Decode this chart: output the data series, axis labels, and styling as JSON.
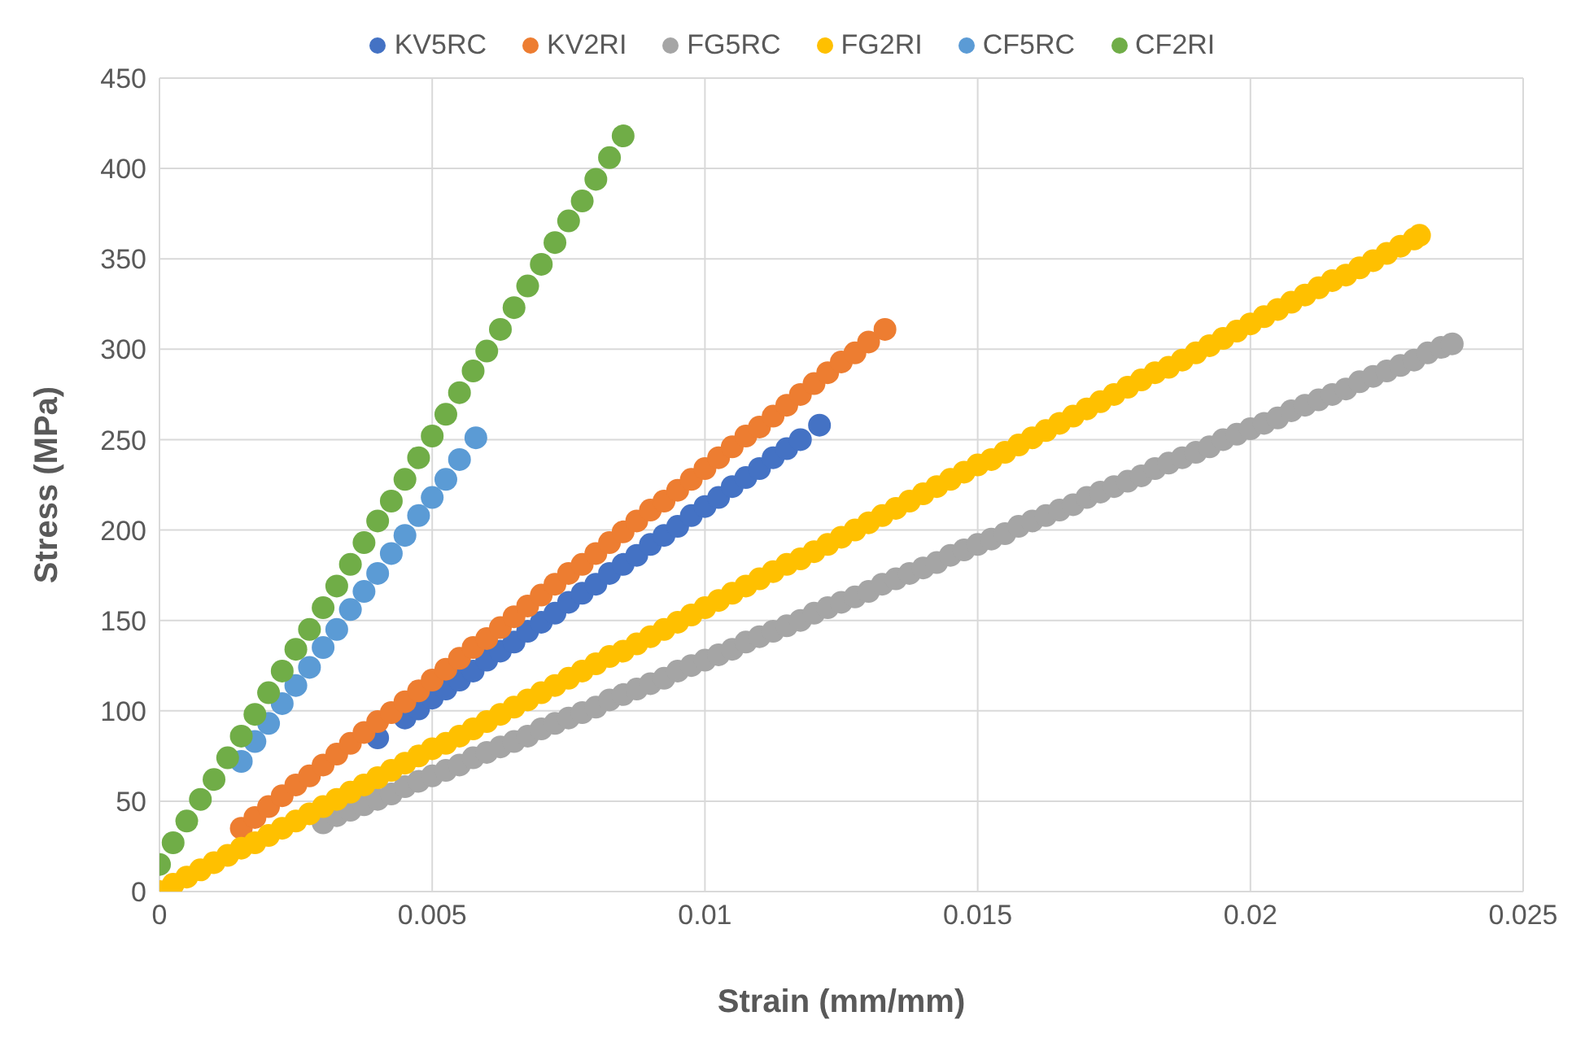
{
  "chart_data": {
    "type": "scatter",
    "xlabel": "Strain (mm/mm)",
    "ylabel": "Stress (MPa)",
    "xlim": [
      0,
      0.025
    ],
    "xticks": [
      0,
      0.005,
      0.01,
      0.015,
      0.02,
      0.025
    ],
    "ylim": [
      0,
      450
    ],
    "yticks": [
      0,
      50,
      100,
      150,
      200,
      250,
      300,
      350,
      400,
      450
    ],
    "grid": true,
    "legend": "top",
    "marker": "circle",
    "series": [
      {
        "name": "KV5RC",
        "color": "#4472c4",
        "x": [
          0.004,
          0.0045,
          0.00475,
          0.005,
          0.00525,
          0.0055,
          0.00575,
          0.006,
          0.00625,
          0.0065,
          0.00675,
          0.007,
          0.00725,
          0.0075,
          0.00775,
          0.008,
          0.00825,
          0.0085,
          0.00875,
          0.009,
          0.00925,
          0.0095,
          0.00975,
          0.01,
          0.01025,
          0.0105,
          0.01075,
          0.011,
          0.01125,
          0.0115,
          0.01175,
          0.0121
        ],
        "values": [
          85,
          96,
          101,
          107,
          112,
          117,
          122,
          128,
          133,
          138,
          144,
          149,
          154,
          160,
          165,
          170,
          176,
          181,
          186,
          192,
          197,
          202,
          208,
          213,
          218,
          224,
          229,
          234,
          240,
          245,
          250,
          258
        ]
      },
      {
        "name": "KV2RI",
        "color": "#ed7d31",
        "x": [
          0.0015,
          0.00175,
          0.002,
          0.00225,
          0.0025,
          0.00275,
          0.003,
          0.00325,
          0.0035,
          0.00375,
          0.004,
          0.00425,
          0.0045,
          0.00475,
          0.005,
          0.00525,
          0.0055,
          0.00575,
          0.006,
          0.00625,
          0.0065,
          0.00675,
          0.007,
          0.00725,
          0.0075,
          0.00775,
          0.008,
          0.00825,
          0.0085,
          0.00875,
          0.009,
          0.00925,
          0.0095,
          0.00975,
          0.01,
          0.01025,
          0.0105,
          0.01075,
          0.011,
          0.01125,
          0.0115,
          0.01175,
          0.012,
          0.01225,
          0.0125,
          0.01275,
          0.013,
          0.0133
        ],
        "values": [
          35,
          41,
          47,
          53,
          59,
          64,
          70,
          76,
          82,
          88,
          94,
          99,
          105,
          111,
          117,
          123,
          129,
          135,
          140,
          146,
          152,
          158,
          164,
          170,
          176,
          181,
          187,
          193,
          199,
          205,
          211,
          216,
          222,
          228,
          234,
          240,
          246,
          252,
          257,
          263,
          269,
          275,
          281,
          287,
          293,
          298,
          304,
          311
        ]
      },
      {
        "name": "FG5RC",
        "color": "#a5a5a5",
        "x": [
          0.003,
          0.00325,
          0.0035,
          0.00375,
          0.004,
          0.00425,
          0.0045,
          0.00475,
          0.005,
          0.00525,
          0.0055,
          0.00575,
          0.006,
          0.00625,
          0.0065,
          0.00675,
          0.007,
          0.00725,
          0.0075,
          0.00775,
          0.008,
          0.00825,
          0.0085,
          0.00875,
          0.009,
          0.00925,
          0.0095,
          0.00975,
          0.01,
          0.01025,
          0.0105,
          0.01075,
          0.011,
          0.01125,
          0.0115,
          0.01175,
          0.012,
          0.01225,
          0.0125,
          0.01275,
          0.013,
          0.01325,
          0.0135,
          0.01375,
          0.014,
          0.01425,
          0.0145,
          0.01475,
          0.015,
          0.01525,
          0.0155,
          0.01575,
          0.016,
          0.01625,
          0.0165,
          0.01675,
          0.017,
          0.01725,
          0.0175,
          0.01775,
          0.018,
          0.01825,
          0.0185,
          0.01875,
          0.019,
          0.01925,
          0.0195,
          0.01975,
          0.02,
          0.02025,
          0.0205,
          0.02075,
          0.021,
          0.02125,
          0.0215,
          0.02175,
          0.022,
          0.02225,
          0.0225,
          0.02275,
          0.023,
          0.02325,
          0.0235,
          0.0237
        ],
        "values": [
          38,
          42,
          45,
          48,
          51,
          54,
          58,
          61,
          64,
          67,
          70,
          74,
          77,
          80,
          83,
          86,
          90,
          93,
          96,
          99,
          102,
          106,
          109,
          112,
          115,
          118,
          122,
          125,
          128,
          131,
          134,
          138,
          141,
          144,
          147,
          150,
          154,
          157,
          160,
          163,
          166,
          170,
          173,
          176,
          179,
          182,
          186,
          189,
          192,
          195,
          198,
          202,
          205,
          208,
          211,
          214,
          218,
          221,
          224,
          227,
          230,
          234,
          237,
          240,
          243,
          246,
          250,
          253,
          256,
          259,
          262,
          266,
          269,
          272,
          275,
          278,
          282,
          285,
          288,
          291,
          294,
          298,
          301,
          303
        ]
      },
      {
        "name": "FG2RI",
        "color": "#ffc000",
        "x": [
          0,
          0.00025,
          0.0005,
          0.00075,
          0.001,
          0.00125,
          0.0015,
          0.00175,
          0.002,
          0.00225,
          0.0025,
          0.00275,
          0.003,
          0.00325,
          0.0035,
          0.00375,
          0.004,
          0.00425,
          0.0045,
          0.00475,
          0.005,
          0.00525,
          0.0055,
          0.00575,
          0.006,
          0.00625,
          0.0065,
          0.00675,
          0.007,
          0.00725,
          0.0075,
          0.00775,
          0.008,
          0.00825,
          0.0085,
          0.00875,
          0.009,
          0.00925,
          0.0095,
          0.00975,
          0.01,
          0.01025,
          0.0105,
          0.01075,
          0.011,
          0.01125,
          0.0115,
          0.01175,
          0.012,
          0.01225,
          0.0125,
          0.01275,
          0.013,
          0.01325,
          0.0135,
          0.01375,
          0.014,
          0.01425,
          0.0145,
          0.01475,
          0.015,
          0.01525,
          0.0155,
          0.01575,
          0.016,
          0.01625,
          0.0165,
          0.01675,
          0.017,
          0.01725,
          0.0175,
          0.01775,
          0.018,
          0.01825,
          0.0185,
          0.01875,
          0.019,
          0.01925,
          0.0195,
          0.01975,
          0.02,
          0.02025,
          0.0205,
          0.02075,
          0.021,
          0.02125,
          0.0215,
          0.02175,
          0.022,
          0.02225,
          0.0225,
          0.02275,
          0.023,
          0.0231
        ],
        "values": [
          0,
          4,
          8,
          12,
          16,
          20,
          24,
          27,
          31,
          35,
          39,
          43,
          47,
          51,
          55,
          59,
          63,
          67,
          71,
          75,
          79,
          82,
          86,
          90,
          94,
          98,
          102,
          106,
          110,
          114,
          118,
          122,
          126,
          130,
          133,
          137,
          141,
          145,
          149,
          153,
          157,
          161,
          165,
          169,
          173,
          177,
          181,
          184,
          188,
          192,
          196,
          200,
          204,
          208,
          212,
          216,
          220,
          224,
          228,
          232,
          236,
          239,
          243,
          247,
          251,
          255,
          259,
          263,
          267,
          271,
          275,
          279,
          283,
          287,
          290,
          294,
          298,
          302,
          306,
          310,
          314,
          318,
          322,
          326,
          330,
          334,
          338,
          341,
          345,
          349,
          353,
          357,
          361,
          363
        ]
      },
      {
        "name": "CF5RC",
        "color": "#5b9bd5",
        "x": [
          0.0015,
          0.00175,
          0.002,
          0.00225,
          0.0025,
          0.00275,
          0.003,
          0.00325,
          0.0035,
          0.00375,
          0.004,
          0.00425,
          0.0045,
          0.00475,
          0.005,
          0.00525,
          0.0055,
          0.0058
        ],
        "values": [
          72,
          83,
          93,
          104,
          114,
          124,
          135,
          145,
          156,
          166,
          176,
          187,
          197,
          208,
          218,
          228,
          239,
          251
        ]
      },
      {
        "name": "CF2RI",
        "color": "#70ad47",
        "x": [
          0,
          0.00025,
          0.0005,
          0.00075,
          0.001,
          0.00125,
          0.0015,
          0.00175,
          0.002,
          0.00225,
          0.0025,
          0.00275,
          0.003,
          0.00325,
          0.0035,
          0.00375,
          0.004,
          0.00425,
          0.0045,
          0.00475,
          0.005,
          0.00525,
          0.0055,
          0.00575,
          0.006,
          0.00625,
          0.0065,
          0.00675,
          0.007,
          0.00725,
          0.0075,
          0.00775,
          0.008,
          0.00825,
          0.0085
        ],
        "values": [
          15,
          27,
          39,
          51,
          62,
          74,
          86,
          98,
          110,
          122,
          134,
          145,
          157,
          169,
          181,
          193,
          205,
          216,
          228,
          240,
          252,
          264,
          276,
          288,
          299,
          311,
          323,
          335,
          347,
          359,
          371,
          382,
          394,
          406,
          418
        ]
      }
    ]
  }
}
